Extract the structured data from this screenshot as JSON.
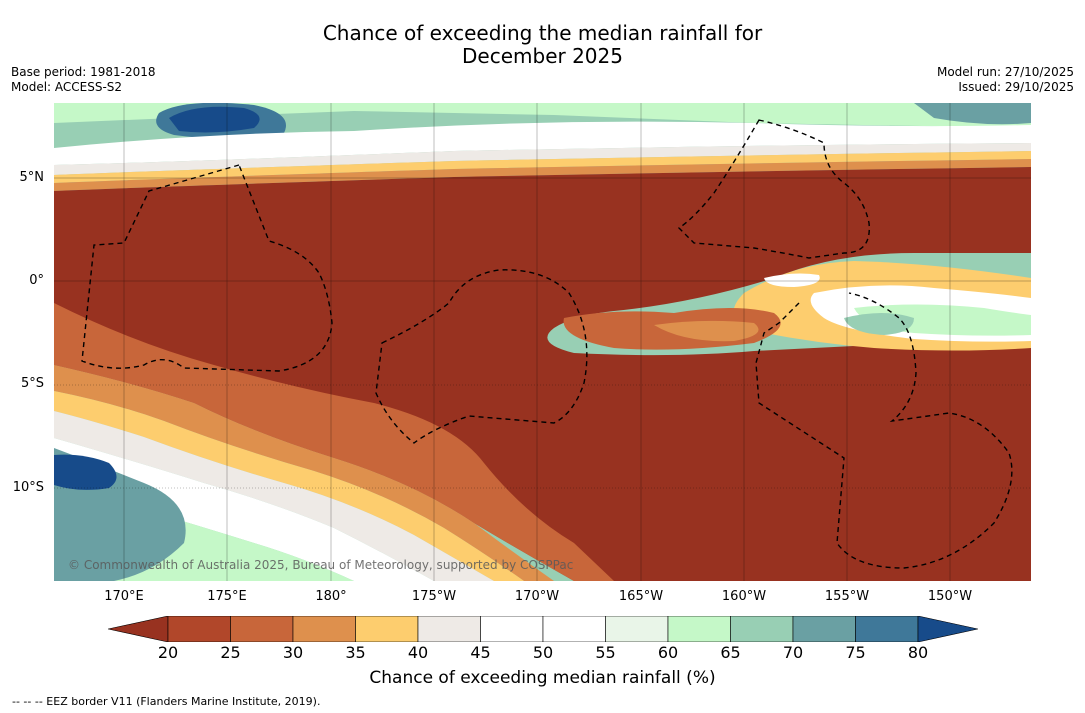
{
  "title": {
    "line1": "Chance of exceeding the median rainfall for",
    "line2": "December 2025"
  },
  "meta": {
    "base_period": "Base period: 1981-2018",
    "model": "Model: ACCESS-S2",
    "model_run": "Model run: 27/10/2025",
    "issued": "Issued: 29/10/2025"
  },
  "map": {
    "lat_labels": [
      "5°N",
      "0°",
      "5°S",
      "10°S"
    ],
    "lon_labels": [
      "170°E",
      "175°E",
      "180°",
      "175°W",
      "170°W",
      "165°W",
      "160°W",
      "155°W",
      "150°W"
    ],
    "copyright": "© Commonwealth of Australia 2025, Bureau of Meteorology, supported by COSPPac"
  },
  "colorbar": {
    "ticks": [
      "20",
      "25",
      "30",
      "35",
      "40",
      "45",
      "50",
      "55",
      "60",
      "65",
      "70",
      "75",
      "80"
    ],
    "colors": [
      "#983220",
      "#b1472a",
      "#c8663a",
      "#de904d",
      "#fdcd6e",
      "#eeeae6",
      "#ffffff",
      "#ffffff",
      "#e9f5e8",
      "#c5f8c8",
      "#98cfb4",
      "#6aa0a3",
      "#3f7899",
      "#174b8a"
    ],
    "label": "Chance of exceeding median rainfall (%)"
  },
  "footnote": "--  --  -- EEZ border V11 (Flanders Marine Institute, 2019)."
}
